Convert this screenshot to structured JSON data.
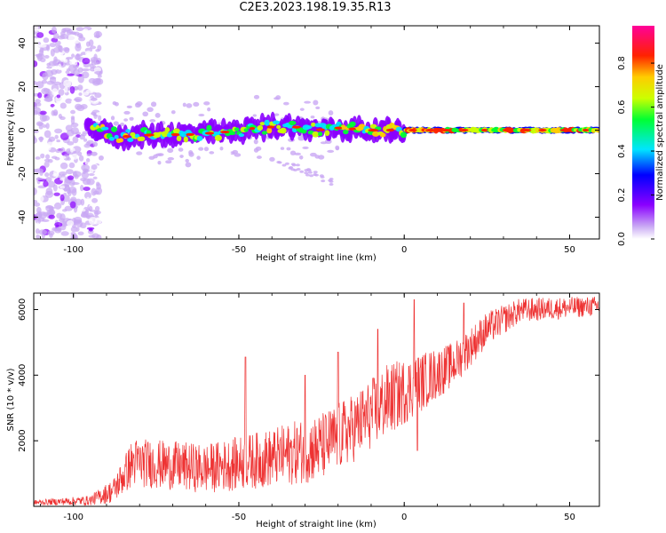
{
  "title": "C2E3.2023.198.19.35.R13",
  "chart_data": [
    {
      "type": "heatmap",
      "title": "C2E3.2023.198.19.35.R13",
      "xlabel": "Height of straight line (km)",
      "ylabel": "Frequency (Hz)",
      "xlim": [
        -112,
        59
      ],
      "ylim": [
        -50,
        48
      ],
      "x_ticks": [
        "-100",
        "-50",
        "0",
        "50"
      ],
      "y_ticks": [
        "-40",
        "-20",
        "0",
        "20",
        "40"
      ],
      "colorbar": {
        "label": "Normalized spectral amplitude",
        "range": [
          0,
          0.97
        ],
        "ticks": [
          "0.0",
          "0.2",
          "0.4",
          "0.6",
          "0.8"
        ]
      },
      "ridge": [
        {
          "x": -95,
          "f": 1
        },
        {
          "x": -85,
          "f": -3
        },
        {
          "x": -75,
          "f": -2
        },
        {
          "x": -65,
          "f": -2
        },
        {
          "x": -55,
          "f": -1
        },
        {
          "x": -45,
          "f": 1
        },
        {
          "x": -35,
          "f": 2
        },
        {
          "x": -27,
          "f": 0
        },
        {
          "x": -20,
          "f": 1
        },
        {
          "x": -10,
          "f": 0
        },
        {
          "x": 0,
          "f": 0
        },
        {
          "x": 20,
          "f": 0
        },
        {
          "x": 59,
          "f": 0
        }
      ]
    },
    {
      "type": "line",
      "xlabel": "Height of straight line (km)",
      "ylabel": "SNR (10 * v/v)",
      "xlim": [
        -112,
        59
      ],
      "ylim": [
        0,
        6500
      ],
      "x_ticks": [
        "-100",
        "-50",
        "0",
        "50"
      ],
      "y_ticks": [
        "2000",
        "4000",
        "6000"
      ],
      "color": "#ee3333",
      "envelope": [
        {
          "x": -112,
          "base": 100,
          "amp": 100
        },
        {
          "x": -95,
          "base": 150,
          "amp": 200
        },
        {
          "x": -88,
          "base": 400,
          "amp": 500
        },
        {
          "x": -82,
          "base": 1200,
          "amp": 1000
        },
        {
          "x": -60,
          "base": 1000,
          "amp": 1000
        },
        {
          "x": -40,
          "base": 1300,
          "amp": 1200
        },
        {
          "x": -25,
          "base": 1600,
          "amp": 1400
        },
        {
          "x": -15,
          "base": 2200,
          "amp": 1400
        },
        {
          "x": -5,
          "base": 3000,
          "amp": 1500
        },
        {
          "x": 5,
          "base": 3600,
          "amp": 1200
        },
        {
          "x": 15,
          "base": 4200,
          "amp": 900
        },
        {
          "x": 25,
          "base": 5300,
          "amp": 700
        },
        {
          "x": 35,
          "base": 5900,
          "amp": 500
        },
        {
          "x": 59,
          "base": 6050,
          "amp": 400
        }
      ],
      "spikes": [
        {
          "x": -48,
          "y": 4550
        },
        {
          "x": -30,
          "y": 4000
        },
        {
          "x": -20,
          "y": 4700
        },
        {
          "x": -8,
          "y": 5400
        },
        {
          "x": 3,
          "y": 6300
        },
        {
          "x": 4,
          "y": 1700
        },
        {
          "x": 18,
          "y": 6200
        }
      ]
    }
  ]
}
